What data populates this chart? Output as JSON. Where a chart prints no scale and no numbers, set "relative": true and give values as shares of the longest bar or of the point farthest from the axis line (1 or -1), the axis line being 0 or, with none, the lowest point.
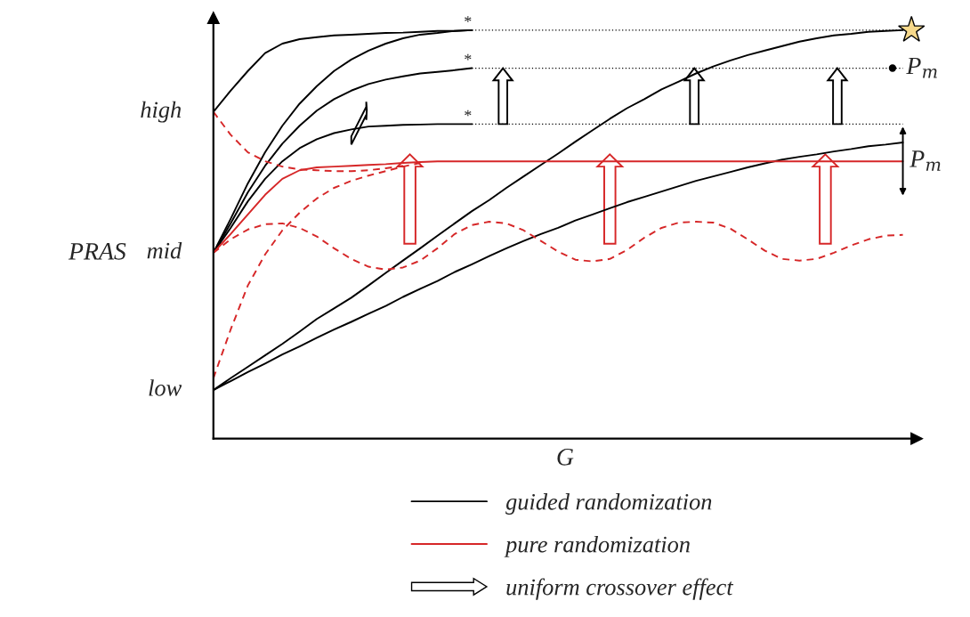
{
  "chart_data": {
    "type": "line",
    "relative": true,
    "xlabel": "G",
    "ylabel": "PRAS",
    "legend": "bottom",
    "marker": "none",
    "categories": [
      null,
      null,
      null,
      null,
      null,
      null,
      null,
      null,
      null,
      null,
      null,
      null,
      null,
      null,
      null,
      null,
      null,
      null,
      null,
      null,
      null,
      null,
      null,
      null,
      null,
      null,
      null,
      null,
      null,
      null,
      null,
      null,
      null,
      null,
      null,
      null,
      null,
      null,
      null,
      null,
      null
    ],
    "series": [
      {
        "name": "guided randomization",
        "color": "#000000",
        "values": [
          0.8,
          0.852,
          0.9,
          0.944,
          0.967,
          0.978,
          0.983,
          0.987,
          0.989,
          0.991,
          0.993,
          0.994,
          0.996,
          0.998,
          0.998,
          1.0,
          null,
          null,
          null,
          null,
          null,
          null,
          null,
          null,
          null,
          null,
          null,
          null,
          null,
          null,
          null,
          null,
          null,
          null,
          null,
          null,
          null,
          null,
          null,
          null,
          null
        ]
      },
      {
        "color": "#000000",
        "values": [
          0.455,
          0.538,
          0.625,
          0.701,
          0.766,
          0.82,
          0.863,
          0.9,
          0.928,
          0.95,
          0.967,
          0.98,
          0.989,
          0.993,
          0.998,
          1.0,
          null,
          null,
          null,
          null,
          null,
          null,
          null,
          null,
          null,
          null,
          null,
          null,
          null,
          null,
          null,
          null,
          null,
          null,
          null,
          null,
          null,
          null,
          null,
          null,
          null
        ]
      },
      {
        "color": "#000000",
        "values": [
          0.455,
          0.527,
          0.603,
          0.668,
          0.722,
          0.766,
          0.803,
          0.831,
          0.852,
          0.868,
          0.879,
          0.887,
          0.894,
          0.898,
          0.902,
          0.907,
          null,
          null,
          null,
          null,
          null,
          null,
          null,
          null,
          null,
          null,
          null,
          null,
          null,
          null,
          null,
          null,
          null,
          null,
          null,
          null,
          null,
          null,
          null,
          null,
          null
        ]
      },
      {
        "color": "#000000",
        "values": [
          0.455,
          0.516,
          0.581,
          0.636,
          0.679,
          0.711,
          0.733,
          0.748,
          0.757,
          0.764,
          0.766,
          0.768,
          0.769,
          0.77,
          0.77,
          0.77,
          null,
          null,
          null,
          null,
          null,
          null,
          null,
          null,
          null,
          null,
          null,
          null,
          null,
          null,
          null,
          null,
          null,
          null,
          null,
          null,
          null,
          null,
          null,
          null,
          null
        ]
      },
      {
        "color": "#000000",
        "values": [
          0.119,
          0.148,
          0.176,
          0.204,
          0.232,
          0.262,
          0.293,
          0.319,
          0.345,
          0.375,
          0.406,
          0.436,
          0.466,
          0.497,
          0.527,
          0.557,
          0.584,
          0.614,
          0.642,
          0.67,
          0.698,
          0.727,
          0.755,
          0.783,
          0.809,
          0.831,
          0.855,
          0.874,
          0.894,
          0.911,
          0.926,
          0.939,
          0.95,
          0.961,
          0.972,
          0.98,
          0.987,
          0.991,
          0.996,
          0.998,
          1.0
        ]
      },
      {
        "color": "#000000",
        "values": [
          0.119,
          0.141,
          0.163,
          0.184,
          0.206,
          0.226,
          0.247,
          0.267,
          0.286,
          0.306,
          0.325,
          0.347,
          0.367,
          0.386,
          0.408,
          0.427,
          0.447,
          0.466,
          0.484,
          0.501,
          0.516,
          0.534,
          0.549,
          0.564,
          0.579,
          0.592,
          0.605,
          0.618,
          0.631,
          0.642,
          0.653,
          0.664,
          0.674,
          0.683,
          0.69,
          0.696,
          0.703,
          0.709,
          0.716,
          0.72,
          0.725
        ]
      },
      {
        "color": "#000000",
        "line_style": "dotted",
        "values": [
          null,
          null,
          null,
          null,
          null,
          null,
          null,
          null,
          null,
          null,
          null,
          null,
          null,
          null,
          null,
          1.0,
          1.0,
          1.0,
          1.0,
          1.0,
          1.0,
          1.0,
          1.0,
          1.0,
          1.0,
          1.0,
          1.0,
          1.0,
          1.0,
          1.0,
          1.0,
          1.0,
          1.0,
          1.0,
          1.0,
          1.0,
          1.0,
          1.0,
          1.0,
          1.0,
          1.0
        ]
      },
      {
        "color": "#000000",
        "line_style": "dotted",
        "values": [
          null,
          null,
          null,
          null,
          null,
          null,
          null,
          null,
          null,
          null,
          null,
          null,
          null,
          null,
          null,
          0.907,
          0.907,
          0.907,
          0.907,
          0.907,
          0.907,
          0.907,
          0.907,
          0.907,
          0.907,
          0.907,
          0.907,
          0.907,
          0.907,
          0.907,
          0.907,
          0.907,
          0.907,
          0.907,
          0.907,
          0.907,
          0.907,
          0.907,
          0.907,
          0.907,
          0.907
        ]
      },
      {
        "color": "#000000",
        "line_style": "dotted",
        "values": [
          null,
          null,
          null,
          null,
          null,
          null,
          null,
          null,
          null,
          null,
          null,
          null,
          null,
          null,
          null,
          0.77,
          0.77,
          0.77,
          0.77,
          0.77,
          0.77,
          0.77,
          0.77,
          0.77,
          0.77,
          0.77,
          0.77,
          0.77,
          0.77,
          0.77,
          0.77,
          0.77,
          0.77,
          0.77,
          0.77,
          0.77,
          0.77,
          0.77,
          0.77,
          0.77,
          0.77
        ]
      },
      {
        "name": "pure randomization",
        "color": "#d62728",
        "values": [
          0.455,
          0.501,
          0.549,
          0.597,
          0.636,
          0.657,
          0.664,
          0.666,
          0.668,
          0.67,
          0.672,
          0.675,
          0.677,
          0.679,
          0.679,
          0.679,
          0.679,
          0.679,
          0.679,
          0.679,
          0.679,
          0.679,
          0.679,
          0.679,
          0.679,
          0.679,
          0.679,
          0.679,
          0.679,
          0.679,
          0.679,
          0.679,
          0.679,
          0.679,
          0.679,
          0.679,
          0.679,
          0.679,
          0.679,
          0.679,
          0.679
        ]
      },
      {
        "color": "#d62728",
        "line_style": "dashed",
        "values": [
          0.8,
          0.744,
          0.701,
          0.679,
          0.666,
          0.659,
          0.657,
          0.655,
          0.655,
          0.657,
          0.662,
          0.668,
          null,
          null,
          null,
          null,
          null,
          null,
          null,
          null,
          null,
          null,
          null,
          null,
          null,
          null,
          null,
          null,
          null,
          null,
          null,
          null,
          null,
          null,
          null,
          null,
          null,
          null,
          null,
          null,
          null
        ]
      },
      {
        "color": "#d62728",
        "line_style": "dashed",
        "values": [
          0.148,
          0.267,
          0.375,
          0.451,
          0.51,
          0.553,
          0.588,
          0.614,
          0.631,
          0.644,
          0.655,
          0.666,
          0.675,
          null,
          null,
          null,
          null,
          null,
          null,
          null,
          null,
          null,
          null,
          null,
          null,
          null,
          null,
          null,
          null,
          null,
          null,
          null,
          null,
          null,
          null,
          null,
          null,
          null,
          null,
          null,
          null
        ]
      },
      {
        "color": "#d62728",
        "line_style": "dashed",
        "values": [
          0.455,
          0.488,
          0.512,
          0.525,
          0.527,
          0.516,
          0.495,
          0.466,
          0.44,
          0.421,
          0.414,
          0.419,
          0.436,
          0.466,
          0.501,
          0.523,
          0.531,
          0.527,
          0.51,
          0.484,
          0.458,
          0.438,
          0.434,
          0.44,
          0.462,
          0.492,
          0.516,
          0.529,
          0.531,
          0.529,
          0.514,
          0.488,
          0.46,
          0.44,
          0.436,
          0.44,
          0.455,
          0.473,
          0.488,
          0.497,
          0.499
        ]
      }
    ],
    "annotations": [
      "low",
      "mid",
      "high",
      "*",
      "*",
      "*",
      "P$_{m}$",
      "P$_{m}$",
      "uniform crossover effect"
    ]
  }
}
